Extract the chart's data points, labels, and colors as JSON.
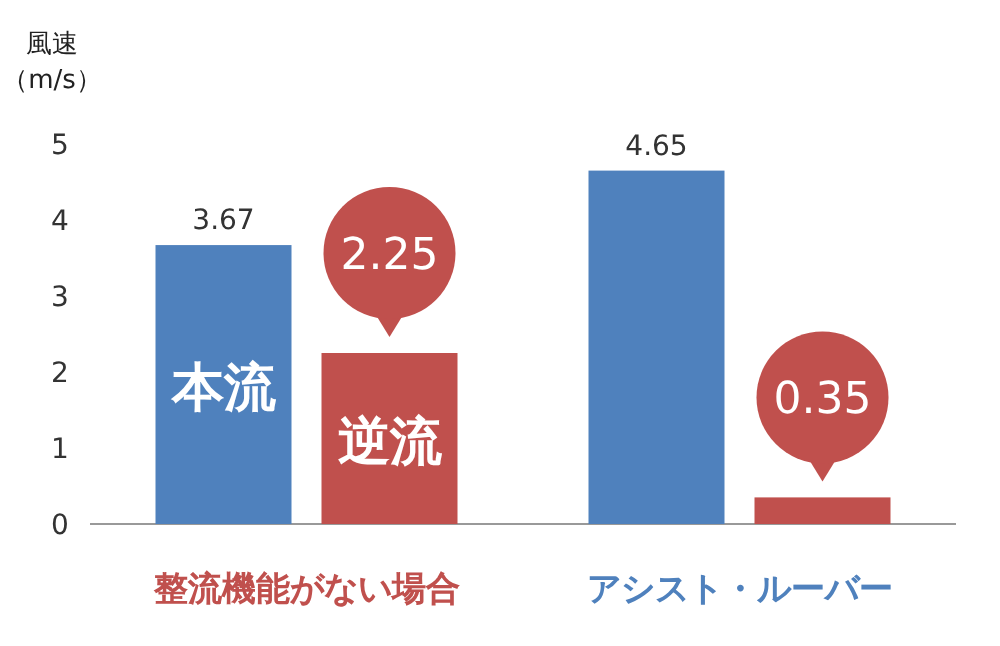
{
  "chart_data": {
    "type": "bar",
    "ylabel": "風速（m/s）",
    "categories": [
      "整流機能がない場合",
      "アシスト・ルーバー"
    ],
    "series": [
      {
        "name": "本流",
        "color": "#4f81bd",
        "values": [
          3.67,
          4.65
        ],
        "value_labels": [
          "3.67",
          "4.65"
        ]
      },
      {
        "name": "逆流",
        "color": "#c0504d",
        "values": [
          2.25,
          0.35
        ],
        "value_labels": [
          "2.25",
          "0.35"
        ]
      }
    ],
    "ylim": [
      0,
      5
    ],
    "yticks": [
      0,
      1,
      2,
      3,
      4,
      5
    ],
    "grid": false
  }
}
